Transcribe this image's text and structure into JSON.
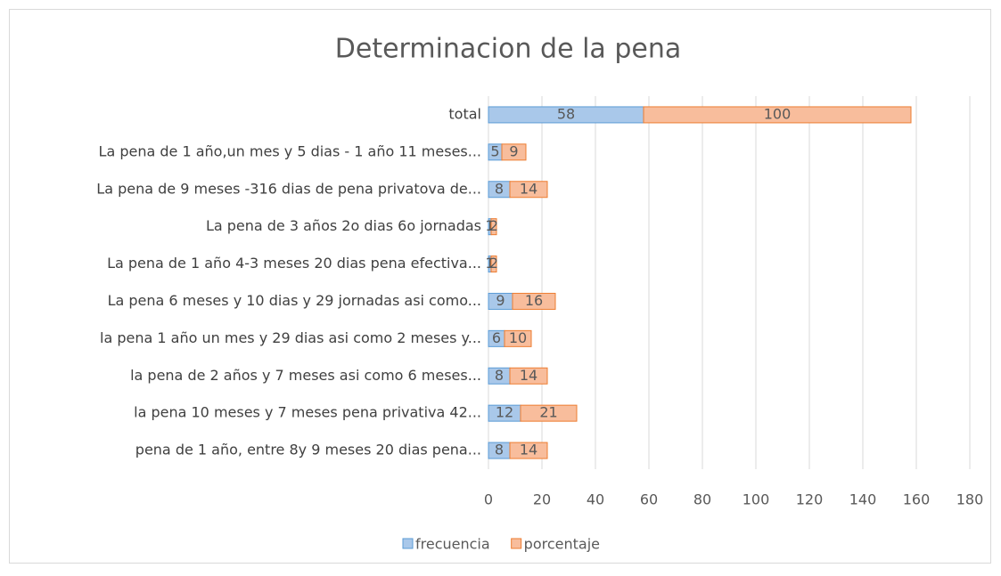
{
  "chart_data": {
    "type": "stacked-bar-horizontal",
    "title": "Determinacion de la pena",
    "categories": [
      "total",
      "La pena de 1 año,un mes y 5 dias - 1 año 11 meses...",
      "La pena de 9 meses -316  dias de pena privatova de...",
      "La pena de 3 años 2o dias 6o jornadas",
      "La pena de 1 año  4-3  meses 20 dias pena efectiva...",
      "La pena 6 meses y 10 dias y 29 jornadas asi como...",
      "la pena 1 año un mes y 29 dias asi como 2 meses y...",
      "la pena  de 2 años y 7 meses asi como 6 meses...",
      "la pena 10 meses y 7 meses  pena privativa  42...",
      "pena de 1 año, entre 8y 9 meses 20 dias pena..."
    ],
    "series": [
      {
        "name": "frecuencia",
        "color": "#5b9bd5",
        "fill": "#a9c8ea",
        "values": [
          58,
          5,
          8,
          1,
          1,
          9,
          6,
          8,
          12,
          8
        ]
      },
      {
        "name": "porcentaje",
        "color": "#ed7d31",
        "fill": "#f8bd9c",
        "values": [
          100,
          9,
          14,
          2,
          2,
          16,
          10,
          14,
          21,
          14
        ]
      }
    ],
    "xlim": [
      0,
      180
    ],
    "xticks": [
      0,
      20,
      40,
      60,
      80,
      100,
      120,
      140,
      160,
      180
    ],
    "grid": true,
    "legend": "bottom"
  }
}
